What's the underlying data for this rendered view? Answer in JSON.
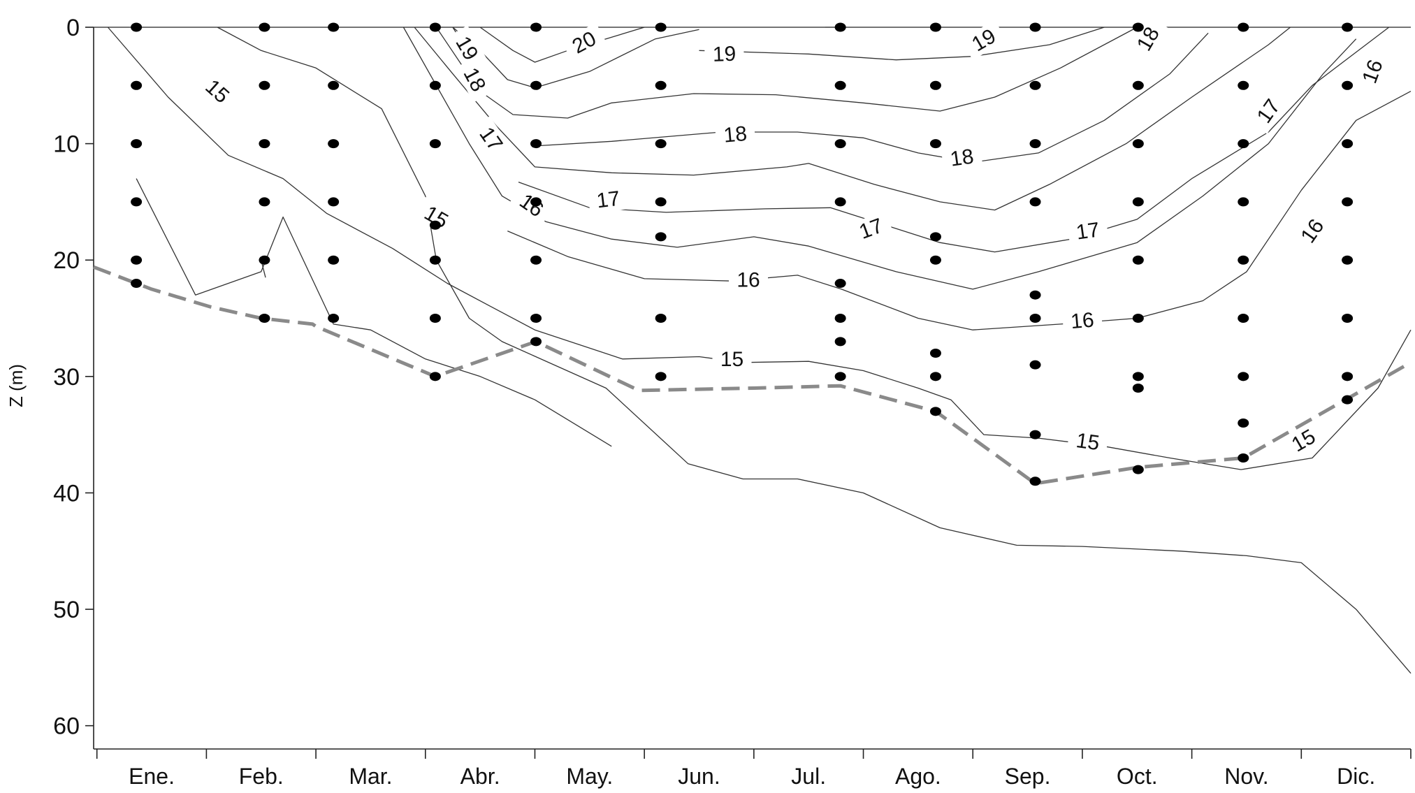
{
  "chart_data": {
    "type": "contour",
    "ylabel": "Z (m)",
    "ylim": [
      0,
      62
    ],
    "xlim": [
      -0.53,
      11.5
    ],
    "y_ticks": [
      0,
      10,
      20,
      30,
      40,
      50,
      60
    ],
    "x_tick_labels": [
      "Ene.",
      "Feb.",
      "Mar.",
      "Abr.",
      "May.",
      "Jun.",
      "Jul.",
      "Ago.",
      "Sep.",
      "Oct.",
      "Nov.",
      "Dic."
    ],
    "grid": false,
    "sample_points": [
      [
        -0.14,
        0
      ],
      [
        -0.14,
        5
      ],
      [
        -0.14,
        10
      ],
      [
        -0.14,
        15
      ],
      [
        -0.14,
        20
      ],
      [
        -0.14,
        22
      ],
      [
        1.03,
        0
      ],
      [
        1.03,
        5
      ],
      [
        1.03,
        10
      ],
      [
        1.03,
        15
      ],
      [
        1.03,
        20
      ],
      [
        1.03,
        25
      ],
      [
        1.66,
        0
      ],
      [
        1.66,
        5
      ],
      [
        1.66,
        10
      ],
      [
        1.66,
        15
      ],
      [
        1.66,
        20
      ],
      [
        1.66,
        25
      ],
      [
        2.59,
        0
      ],
      [
        2.59,
        5
      ],
      [
        2.59,
        10
      ],
      [
        2.59,
        17
      ],
      [
        2.59,
        20
      ],
      [
        2.59,
        25
      ],
      [
        2.59,
        30
      ],
      [
        3.51,
        0
      ],
      [
        3.51,
        5
      ],
      [
        3.51,
        10
      ],
      [
        3.51,
        15
      ],
      [
        3.51,
        20
      ],
      [
        3.51,
        25
      ],
      [
        3.51,
        27
      ],
      [
        4.65,
        0
      ],
      [
        4.65,
        5
      ],
      [
        4.65,
        10
      ],
      [
        4.65,
        15
      ],
      [
        4.65,
        18
      ],
      [
        4.65,
        25
      ],
      [
        4.65,
        30
      ],
      [
        6.29,
        0
      ],
      [
        6.29,
        5
      ],
      [
        6.29,
        10
      ],
      [
        6.29,
        15
      ],
      [
        6.29,
        22
      ],
      [
        6.29,
        25
      ],
      [
        6.29,
        27
      ],
      [
        6.29,
        30
      ],
      [
        7.16,
        0
      ],
      [
        7.16,
        5
      ],
      [
        7.16,
        10
      ],
      [
        7.16,
        18
      ],
      [
        7.16,
        20
      ],
      [
        7.16,
        28
      ],
      [
        7.16,
        30
      ],
      [
        7.16,
        33
      ],
      [
        8.07,
        0
      ],
      [
        8.07,
        5
      ],
      [
        8.07,
        10
      ],
      [
        8.07,
        15
      ],
      [
        8.07,
        23
      ],
      [
        8.07,
        25
      ],
      [
        8.07,
        29
      ],
      [
        8.07,
        35
      ],
      [
        8.07,
        39
      ],
      [
        9.01,
        0
      ],
      [
        9.01,
        5
      ],
      [
        9.01,
        10
      ],
      [
        9.01,
        15
      ],
      [
        9.01,
        20
      ],
      [
        9.01,
        25
      ],
      [
        9.01,
        30
      ],
      [
        9.01,
        31
      ],
      [
        9.01,
        38
      ],
      [
        9.97,
        0
      ],
      [
        9.97,
        5
      ],
      [
        9.97,
        10
      ],
      [
        9.97,
        15
      ],
      [
        9.97,
        20
      ],
      [
        9.97,
        25
      ],
      [
        9.97,
        30
      ],
      [
        9.97,
        34
      ],
      [
        9.97,
        37
      ],
      [
        10.92,
        0
      ],
      [
        10.92,
        5
      ],
      [
        10.92,
        10
      ],
      [
        10.92,
        15
      ],
      [
        10.92,
        20
      ],
      [
        10.92,
        25
      ],
      [
        10.92,
        30
      ],
      [
        10.92,
        32
      ]
    ],
    "dashed_boundary": [
      [
        -0.53,
        20.6
      ],
      [
        0.0,
        22.5
      ],
      [
        0.53,
        24.0
      ],
      [
        1.0,
        25.0
      ],
      [
        1.47,
        25.5
      ],
      [
        1.5,
        25.7
      ],
      [
        2.59,
        30.0
      ],
      [
        3.51,
        27.0
      ],
      [
        4.45,
        31.2
      ],
      [
        5.5,
        31.0
      ],
      [
        6.29,
        30.8
      ],
      [
        7.16,
        33.0
      ],
      [
        8.07,
        39.2
      ],
      [
        9.01,
        37.8
      ],
      [
        9.97,
        37.0
      ],
      [
        11.5,
        28.8
      ]
    ],
    "contours": [
      {
        "level": 20,
        "points": [
          [
            3.0,
            0
          ],
          [
            3.3,
            2.0
          ],
          [
            3.5,
            3.0
          ],
          [
            3.8,
            2.0
          ],
          [
            4.5,
            0
          ]
        ],
        "labels": [
          {
            "text": "20",
            "x": 3.95,
            "y": 1.3,
            "angle": -28
          }
        ]
      },
      {
        "level": 19,
        "points": [
          [
            2.75,
            0
          ],
          [
            3.0,
            2.0
          ],
          [
            3.25,
            4.5
          ],
          [
            3.5,
            5.2
          ],
          [
            4.0,
            3.8
          ],
          [
            4.6,
            1.0
          ],
          [
            5.0,
            0.2
          ]
        ],
        "labels": []
      },
      {
        "level": 19,
        "points": [
          [
            6.15,
            0
          ],
          [
            6.3,
            0
          ]
        ],
        "labels": []
      },
      {
        "level": 19,
        "points": [
          [
            5.0,
            2.0
          ],
          [
            6.0,
            2.3
          ],
          [
            6.8,
            2.8
          ],
          [
            7.5,
            2.5
          ],
          [
            8.2,
            1.5
          ],
          [
            8.7,
            0
          ]
        ],
        "labels": [
          {
            "text": "19",
            "x": 5.23,
            "y": 2.3,
            "angle": -2
          },
          {
            "text": "19",
            "x": 7.6,
            "y": 1.1,
            "angle": -30
          }
        ]
      },
      {
        "level": 19,
        "points": [
          [
            2.75,
            0
          ],
          [
            2.95,
            3.0
          ]
        ],
        "labels": [
          {
            "text": "19",
            "x": 2.88,
            "y": 1.8,
            "angle": 60
          }
        ]
      },
      {
        "level": 18,
        "points": [
          [
            2.6,
            0
          ],
          [
            2.85,
            3.5
          ],
          [
            3.0,
            5.5
          ],
          [
            3.3,
            7.5
          ],
          [
            3.8,
            7.8
          ],
          [
            4.2,
            6.5
          ],
          [
            4.95,
            5.7
          ],
          [
            5.7,
            5.8
          ],
          [
            6.5,
            6.5
          ],
          [
            7.2,
            7.2
          ],
          [
            7.7,
            6.0
          ],
          [
            8.3,
            3.5
          ],
          [
            9.0,
            0
          ]
        ],
        "labels": [
          {
            "text": "18",
            "x": 2.95,
            "y": 4.5,
            "angle": 62
          },
          {
            "text": "18",
            "x": 9.1,
            "y": 1.0,
            "angle": -60
          }
        ]
      },
      {
        "level": 18,
        "points": [
          [
            3.5,
            10.2
          ],
          [
            4.2,
            9.8
          ],
          [
            5.2,
            9.0
          ],
          [
            5.9,
            9.0
          ],
          [
            6.5,
            9.5
          ],
          [
            7.0,
            10.8
          ],
          [
            7.5,
            11.6
          ],
          [
            8.1,
            10.8
          ],
          [
            8.7,
            8.0
          ],
          [
            9.3,
            4.0
          ],
          [
            9.65,
            0.5
          ]
        ],
        "labels": [
          {
            "text": "18",
            "x": 5.33,
            "y": 9.2,
            "angle": -5
          },
          {
            "text": "18",
            "x": 7.4,
            "y": 11.2,
            "angle": -8
          }
        ]
      },
      {
        "level": 17,
        "points": [
          [
            2.4,
            0
          ],
          [
            2.75,
            4.0
          ],
          [
            3.15,
            8.5
          ],
          [
            3.5,
            12.0
          ],
          [
            4.2,
            12.5
          ],
          [
            4.95,
            12.7
          ],
          [
            5.8,
            12.0
          ],
          [
            6.0,
            11.7
          ],
          [
            6.6,
            13.5
          ],
          [
            7.2,
            15.0
          ],
          [
            7.7,
            15.7
          ],
          [
            8.2,
            13.5
          ],
          [
            8.9,
            10.0
          ],
          [
            9.5,
            6.0
          ],
          [
            10.2,
            1.5
          ],
          [
            10.4,
            0
          ]
        ],
        "labels": [
          {
            "text": "17",
            "x": 3.1,
            "y": 9.6,
            "angle": 55
          },
          {
            "text": "17",
            "x": 10.2,
            "y": 7.2,
            "angle": -55
          }
        ]
      },
      {
        "level": 17,
        "points": [
          [
            3.35,
            13.3
          ],
          [
            4.0,
            15.5
          ],
          [
            4.7,
            15.9
          ],
          [
            5.6,
            15.6
          ],
          [
            6.2,
            15.5
          ],
          [
            6.7,
            17.0
          ],
          [
            7.2,
            18.5
          ],
          [
            7.7,
            19.3
          ],
          [
            8.4,
            18.2
          ],
          [
            9.0,
            16.5
          ],
          [
            9.5,
            13.0
          ],
          [
            10.2,
            9.0
          ],
          [
            10.6,
            5.0
          ],
          [
            11.3,
            0
          ]
        ],
        "labels": [
          {
            "text": "17",
            "x": 4.17,
            "y": 14.8,
            "angle": -7
          },
          {
            "text": "17",
            "x": 6.57,
            "y": 17.3,
            "angle": -20
          },
          {
            "text": "17",
            "x": 8.55,
            "y": 17.5,
            "angle": -8
          }
        ]
      },
      {
        "level": 16,
        "points": [
          [
            2.3,
            0
          ],
          [
            2.6,
            5.0
          ],
          [
            2.9,
            10.0
          ],
          [
            3.2,
            14.5
          ],
          [
            3.6,
            16.7
          ],
          [
            4.2,
            18.2
          ],
          [
            4.8,
            18.9
          ],
          [
            5.5,
            18.0
          ],
          [
            6.0,
            18.8
          ],
          [
            6.8,
            21.0
          ],
          [
            7.5,
            22.5
          ],
          [
            8.1,
            21.0
          ],
          [
            9.0,
            18.5
          ],
          [
            9.6,
            14.5
          ],
          [
            10.2,
            10.0
          ],
          [
            10.7,
            4.0
          ],
          [
            11.0,
            1.0
          ]
        ],
        "labels": [
          {
            "text": "16",
            "x": 3.47,
            "y": 15.3,
            "angle": 35
          },
          {
            "text": "16",
            "x": 11.15,
            "y": 3.8,
            "angle": -70
          }
        ]
      },
      {
        "level": 16,
        "points": [
          [
            3.25,
            17.5
          ],
          [
            3.8,
            19.7
          ],
          [
            4.5,
            21.6
          ],
          [
            5.3,
            21.8
          ],
          [
            5.9,
            21.3
          ],
          [
            6.3,
            22.5
          ],
          [
            7.0,
            25.0
          ],
          [
            7.5,
            26.0
          ],
          [
            8.3,
            25.5
          ],
          [
            9.0,
            25.0
          ],
          [
            9.6,
            23.5
          ],
          [
            10.0,
            21.0
          ],
          [
            10.5,
            14.0
          ],
          [
            11.0,
            8.0
          ],
          [
            11.5,
            5.5
          ]
        ],
        "labels": [
          {
            "text": "16",
            "x": 5.45,
            "y": 21.7,
            "angle": 0
          },
          {
            "text": "16",
            "x": 8.5,
            "y": 25.2,
            "angle": -5
          },
          {
            "text": "16",
            "x": 10.6,
            "y": 17.5,
            "angle": -55
          }
        ]
      },
      {
        "level": 15,
        "points": [
          [
            -0.4,
            0
          ],
          [
            0.15,
            6.0
          ],
          [
            0.7,
            11.0
          ],
          [
            1.2,
            13.0
          ],
          [
            1.6,
            16.0
          ],
          [
            2.2,
            19.0
          ],
          [
            2.7,
            22.0
          ],
          [
            3.1,
            24.0
          ],
          [
            3.5,
            26.0
          ],
          [
            4.3,
            28.5
          ],
          [
            5.0,
            28.3
          ],
          [
            5.4,
            28.8
          ],
          [
            6.0,
            28.7
          ],
          [
            6.5,
            29.5
          ],
          [
            7.0,
            31.0
          ],
          [
            7.3,
            32.0
          ],
          [
            7.6,
            35.0
          ],
          [
            8.1,
            35.3
          ],
          [
            8.7,
            36.0
          ],
          [
            9.3,
            37.0
          ],
          [
            9.95,
            38.0
          ],
          [
            10.6,
            37.0
          ],
          [
            11.2,
            31.0
          ],
          [
            11.5,
            26.0
          ]
        ],
        "labels": [
          {
            "text": "15",
            "x": 0.6,
            "y": 5.5,
            "angle": 42
          },
          {
            "text": "15",
            "x": 2.6,
            "y": 16.3,
            "angle": 30
          },
          {
            "text": "15",
            "x": 5.3,
            "y": 28.5,
            "angle": 0
          },
          {
            "text": "15",
            "x": 8.55,
            "y": 35.6,
            "angle": 8
          },
          {
            "text": "15",
            "x": 10.52,
            "y": 35.5,
            "angle": -30
          }
        ]
      },
      {
        "level": 14,
        "points": [
          [
            0.6,
            0
          ],
          [
            1.0,
            2.0
          ],
          [
            1.5,
            3.5
          ],
          [
            2.1,
            7.0
          ],
          [
            2.5,
            14.5
          ],
          [
            2.6,
            20.0
          ],
          [
            2.9,
            25.0
          ],
          [
            3.2,
            27.0
          ],
          [
            4.15,
            31.0
          ],
          [
            4.9,
            37.5
          ],
          [
            5.4,
            38.8
          ],
          [
            5.9,
            38.8
          ],
          [
            6.5,
            40.0
          ],
          [
            7.2,
            43.0
          ],
          [
            7.9,
            44.5
          ],
          [
            8.5,
            44.6
          ],
          [
            9.4,
            45.0
          ],
          [
            10.0,
            45.4
          ],
          [
            10.5,
            46.0
          ],
          [
            11.0,
            50.0
          ],
          [
            11.5,
            55.5
          ]
        ],
        "labels": []
      },
      {
        "level": 14,
        "points": [
          [
            1.04,
            21.5
          ],
          [
            1.0,
            20.0
          ]
        ],
        "labels": []
      },
      {
        "level": 14,
        "points": [
          [
            -0.14,
            13.0
          ],
          [
            0.4,
            23.0
          ],
          [
            1.0,
            21.0
          ],
          [
            1.2,
            16.3
          ],
          [
            1.66,
            25.5
          ],
          [
            2.0,
            26.0
          ],
          [
            2.5,
            28.5
          ],
          [
            3.0,
            30.0
          ],
          [
            3.5,
            32.0
          ],
          [
            4.2,
            36.0
          ]
        ],
        "labels": []
      }
    ]
  }
}
